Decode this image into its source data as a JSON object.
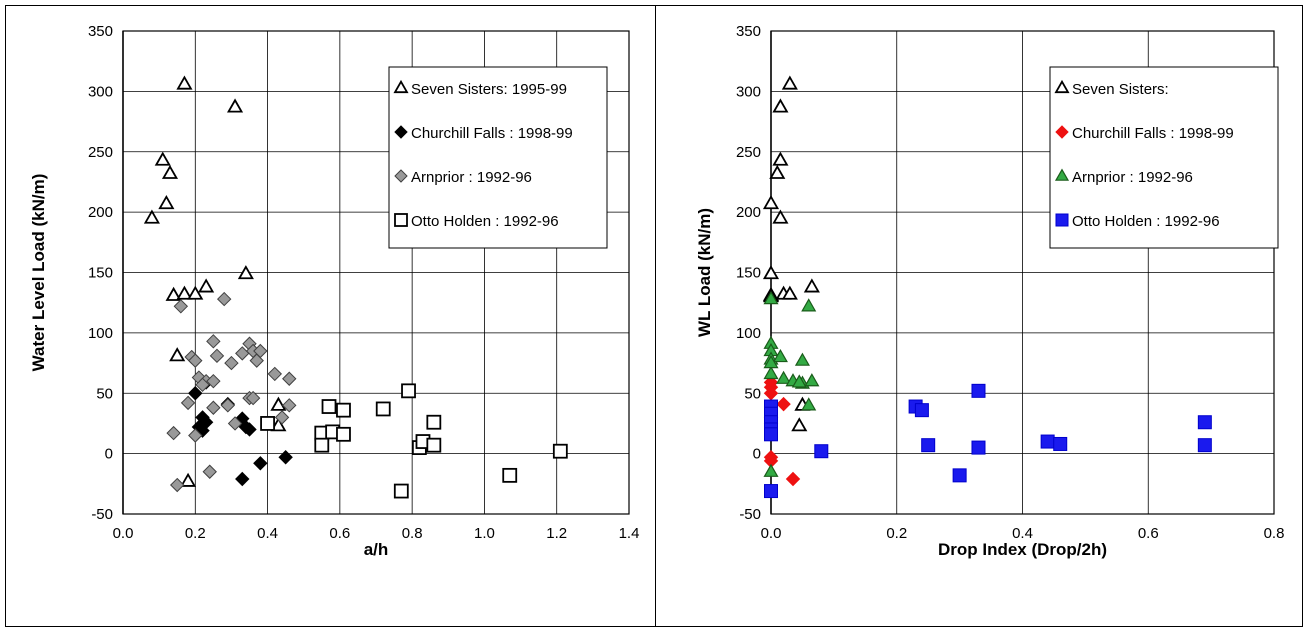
{
  "chart_data": [
    {
      "type": "scatter",
      "title": "",
      "xlabel": "a/h",
      "ylabel": "Water Level Load (kN/m)",
      "xlim": [
        0,
        1.4
      ],
      "ylim": [
        -50,
        350
      ],
      "xticks": [
        0,
        0.2,
        0.4,
        0.6,
        0.8,
        1.0,
        1.2,
        1.4
      ],
      "xtick_labels": [
        "0.0",
        "0.2",
        "0.4",
        "0.6",
        "0.8",
        "1.0",
        "1.2",
        "1.4"
      ],
      "yticks": [
        -50,
        0,
        50,
        100,
        150,
        200,
        250,
        300,
        350
      ],
      "ytick_labels": [
        "-50",
        "0",
        "50",
        "100",
        "150",
        "200",
        "250",
        "300",
        "350"
      ],
      "grid": true,
      "legend_position": "top-right",
      "series": [
        {
          "name": "Seven Sisters: 1995-99",
          "marker": "triangle-open",
          "color": "#000000",
          "fill": "#ffffff",
          "x": [
            0.17,
            0.31,
            0.11,
            0.13,
            0.12,
            0.08,
            0.14,
            0.17,
            0.2,
            0.23,
            0.34,
            0.15,
            0.43,
            0.43,
            0.18
          ],
          "y": [
            306,
            287,
            243,
            232,
            207,
            195,
            131,
            132,
            132,
            138,
            149,
            81,
            40,
            23,
            -23
          ]
        },
        {
          "name": "Churchill Falls : 1998-99",
          "marker": "diamond",
          "color": "#000000",
          "fill": "#000000",
          "x": [
            0.23,
            0.2,
            0.22,
            0.23,
            0.21,
            0.22,
            0.29,
            0.33,
            0.34,
            0.35,
            0.33,
            0.38,
            0.45
          ],
          "y": [
            59,
            50,
            30,
            26,
            22,
            19,
            41,
            29,
            22,
            20,
            -21,
            -8,
            -3
          ]
        },
        {
          "name": "Arnprior : 1992-96",
          "marker": "diamond",
          "color": "#404040",
          "fill": "#999999",
          "x": [
            0.16,
            0.28,
            0.25,
            0.19,
            0.2,
            0.26,
            0.33,
            0.35,
            0.36,
            0.38,
            0.37,
            0.21,
            0.23,
            0.25,
            0.3,
            0.42,
            0.46,
            0.18,
            0.22,
            0.25,
            0.29,
            0.35,
            0.36,
            0.44,
            0.46,
            0.31,
            0.14,
            0.2,
            0.24,
            0.15
          ],
          "y": [
            122,
            128,
            93,
            80,
            77,
            81,
            83,
            91,
            85,
            85,
            77,
            63,
            60,
            60,
            75,
            66,
            62,
            42,
            57,
            38,
            40,
            46,
            46,
            30,
            40,
            25,
            17,
            15,
            -15,
            -26
          ]
        },
        {
          "name": "Otto Holden : 1992-96",
          "marker": "square-open",
          "color": "#000000",
          "fill": "#ffffff",
          "x": [
            0.4,
            0.57,
            0.61,
            0.55,
            0.58,
            0.61,
            0.55,
            0.72,
            0.79,
            0.86,
            0.82,
            0.83,
            0.86,
            0.77,
            1.07,
            1.21
          ],
          "y": [
            25,
            39,
            36,
            17,
            18,
            16,
            7,
            37,
            52,
            26,
            5,
            10,
            7,
            -31,
            -18,
            2
          ]
        }
      ]
    },
    {
      "type": "scatter",
      "title": "",
      "xlabel": "Drop Index (Drop/2h)",
      "ylabel": "WL Load (kN/m)",
      "xlim": [
        0,
        0.8
      ],
      "ylim": [
        -50,
        350
      ],
      "xticks": [
        0,
        0.2,
        0.4,
        0.6,
        0.8
      ],
      "xtick_labels": [
        "0.0",
        "0.2",
        "0.4",
        "0.6",
        "0.8"
      ],
      "yticks": [
        -50,
        0,
        50,
        100,
        150,
        200,
        250,
        300,
        350
      ],
      "ytick_labels": [
        "-50",
        "0",
        "50",
        "100",
        "150",
        "200",
        "250",
        "300",
        "350"
      ],
      "grid": true,
      "legend_position": "top-right",
      "series": [
        {
          "name": "Seven Sisters:",
          "marker": "triangle-open",
          "color": "#000000",
          "fill": "#ffffff",
          "x": [
            0.03,
            0.015,
            0.015,
            0.01,
            0.0,
            0.015,
            0.0,
            0.0,
            0.02,
            0.03,
            0.065,
            0.0,
            0.05,
            0.045
          ],
          "y": [
            306,
            287,
            243,
            232,
            207,
            195,
            149,
            131,
            132,
            132,
            138,
            130,
            40,
            23
          ]
        },
        {
          "name": "Churchill Falls : 1998-99",
          "marker": "diamond",
          "color": "#ee1111",
          "fill": "#ee1111",
          "x": [
            0.0,
            0.0,
            0.0,
            0.02,
            0.0,
            0.0,
            0.0,
            0.0,
            0.035
          ],
          "y": [
            59,
            55,
            50,
            41,
            30,
            25,
            -3,
            -6,
            -21
          ]
        },
        {
          "name": "Arnprior : 1992-96",
          "marker": "triangle",
          "color": "#1a5c1a",
          "fill": "#33aa44",
          "x": [
            0.0,
            0.06,
            0.0,
            0.0,
            0.0,
            0.015,
            0.05,
            0.0,
            0.02,
            0.035,
            0.05,
            0.065,
            0.045,
            0.06,
            0.0,
            0.0
          ],
          "y": [
            128,
            122,
            91,
            85,
            78,
            80,
            77,
            66,
            62,
            60,
            58,
            60,
            59,
            40,
            75,
            -15
          ]
        },
        {
          "name": "Otto Holden : 1992-96",
          "marker": "square",
          "color": "#0000cc",
          "fill": "#1a1aee",
          "x": [
            0.0,
            0.0,
            0.0,
            0.0,
            0.0,
            0.0,
            0.08,
            0.23,
            0.24,
            0.25,
            0.33,
            0.33,
            0.3,
            0.44,
            0.46,
            0.69,
            0.69
          ],
          "y": [
            39,
            33,
            26,
            20,
            16,
            -31,
            2,
            39,
            36,
            7,
            52,
            5,
            -18,
            10,
            8,
            26,
            7
          ]
        }
      ]
    }
  ]
}
